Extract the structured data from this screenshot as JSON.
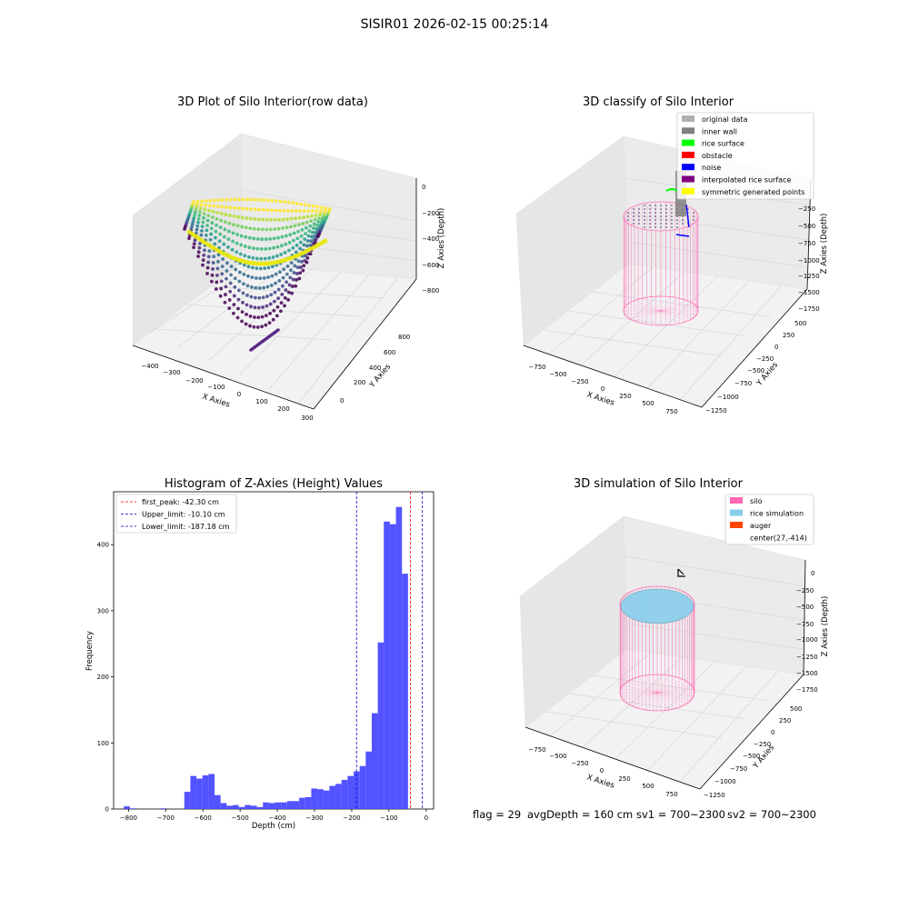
{
  "suptitle": "SISIR01 2026-02-15 00:25:14",
  "footer": {
    "flag": "flag = 29",
    "avg_depth": "avgDepth = 160 cm",
    "sv1": "sv1 = 700~2300",
    "sv2": "sv2 = 700~2300"
  },
  "colors": {
    "histogram_bar": "#4a4aff",
    "first_peak_line": "#ff0000",
    "limit_lines": "#0000cc",
    "silo": "#ff69b4",
    "rice_simulation": "#87ceeb",
    "auger": "#ff4500",
    "original_data": "#b0b0b0",
    "inner_wall": "#808080",
    "rice_surface": "#00ff00",
    "obstacle": "#ff0000",
    "noise": "#0000ff",
    "interpolated_rice_surface": "#800080",
    "symmetric_generated_points": "#ffff00"
  },
  "panels": {
    "raw": {
      "title": "3D Plot of Silo Interior(row data)",
      "xlabel": "X Axies",
      "ylabel": "Y Axies",
      "zlabel": "Z Axies (Depth)",
      "xticks": [
        "−400",
        "−300",
        "−200",
        "−100",
        "0",
        "100",
        "200",
        "300"
      ],
      "yticks": [
        "0",
        "200",
        "400",
        "600",
        "800"
      ],
      "zticks": [
        "0",
        "−200",
        "−400",
        "−600",
        "−800"
      ]
    },
    "classify": {
      "title": "3D classify of Silo Interior",
      "xlabel": "X Axies",
      "ylabel": "Y Axies",
      "zlabel": "Z Axies (Depth)",
      "xticks": [
        "−750",
        "−500",
        "−250",
        "0",
        "250",
        "500",
        "750"
      ],
      "yticks": [
        "500",
        "250",
        "0",
        "−250",
        "−500",
        "−750",
        "−1000",
        "−1250"
      ],
      "zticks": [
        "−250",
        "−500",
        "−750",
        "−1000",
        "−1250",
        "−1500",
        "−1750"
      ],
      "legend": [
        {
          "label": "original data",
          "color": "#b0b0b0"
        },
        {
          "label": "inner wall",
          "color": "#808080"
        },
        {
          "label": "rice surface",
          "color": "#00ff00"
        },
        {
          "label": "obstacle",
          "color": "#ff0000"
        },
        {
          "label": "noise",
          "color": "#0000ff"
        },
        {
          "label": "interpolated rice surface",
          "color": "#800080"
        },
        {
          "label": "symmetric generated points",
          "color": "#ffff00"
        }
      ]
    },
    "simulation": {
      "title": "3D simulation of Silo Interior",
      "xlabel": "X Axies",
      "ylabel": "Y Axies",
      "zlabel": "Z Axies (Depth)",
      "xticks": [
        "−750",
        "−500",
        "−250",
        "0",
        "250",
        "500",
        "750"
      ],
      "yticks": [
        "500",
        "250",
        "0",
        "−250",
        "−500",
        "−750",
        "−1000",
        "−1250"
      ],
      "zticks": [
        "0",
        "−250",
        "−500",
        "−750",
        "−1000",
        "−1250",
        "−1500",
        "−1750"
      ],
      "legend": [
        {
          "label": "silo",
          "color": "#ff69b4"
        },
        {
          "label": "rice simulation",
          "color": "#87ceeb"
        },
        {
          "label": "auger",
          "color": "#ff4500"
        },
        {
          "label": "center(27,-414)",
          "color": ""
        }
      ]
    }
  },
  "chart_data": [
    {
      "type": "bar",
      "title": "Histogram of Z-Axies (Height) Values",
      "xlabel": "Depth (cm)",
      "ylabel": "Frequency",
      "xlim": [
        -840,
        20
      ],
      "ylim": [
        0,
        480
      ],
      "xticks": [
        -800,
        -700,
        -600,
        -500,
        -400,
        -300,
        -200,
        -100,
        0
      ],
      "xtick_labels": [
        "−800",
        "−700",
        "−600",
        "−500",
        "−400",
        "−300",
        "−200",
        "−100",
        "0"
      ],
      "yticks": [
        0,
        100,
        200,
        300,
        400
      ],
      "yticks_labels": [
        "0",
        "100",
        "200",
        "300",
        "400"
      ],
      "bin_width": 16.25,
      "bin_left_edges": [
        -812.5,
        -796.25,
        -780,
        -763.75,
        -747.5,
        -731.25,
        -715,
        -698.75,
        -682.5,
        -666.25,
        -650,
        -633.75,
        -617.5,
        -601.25,
        -585,
        -568.75,
        -552.5,
        -536.25,
        -520,
        -503.75,
        -487.5,
        -471.25,
        -455,
        -438.75,
        -422.5,
        -406.25,
        -390,
        -373.75,
        -357.5,
        -341.25,
        -325,
        -308.75,
        -292.5,
        -276.25,
        -260,
        -243.75,
        -227.5,
        -211.25,
        -195,
        -178.75,
        -162.5,
        -146.25,
        -130,
        -113.75,
        -97.5,
        -81.25,
        -65,
        -48.75,
        -32.5,
        -16.25
      ],
      "values": [
        4,
        1,
        0,
        0,
        0,
        0,
        1,
        0,
        0,
        0,
        26,
        50,
        46,
        51,
        53,
        21,
        9,
        5,
        6,
        3,
        6,
        5,
        3,
        10,
        9,
        10,
        10,
        12,
        12,
        17,
        18,
        31,
        30,
        28,
        35,
        38,
        44,
        50,
        57,
        65,
        87,
        145,
        252,
        435,
        431,
        457,
        356,
        0,
        0,
        0
      ],
      "reference_lines": [
        {
          "name": "first_peak: -42.30 cm",
          "x": -42.3,
          "color": "#ff0000"
        },
        {
          "name": "Upper_limit: -10.10 cm",
          "x": -10.1,
          "color": "#0000cc"
        },
        {
          "name": "Lower_limit: -187.18 cm",
          "x": -187.18,
          "color": "#0000cc"
        }
      ],
      "legend_position": "top-left"
    }
  ]
}
